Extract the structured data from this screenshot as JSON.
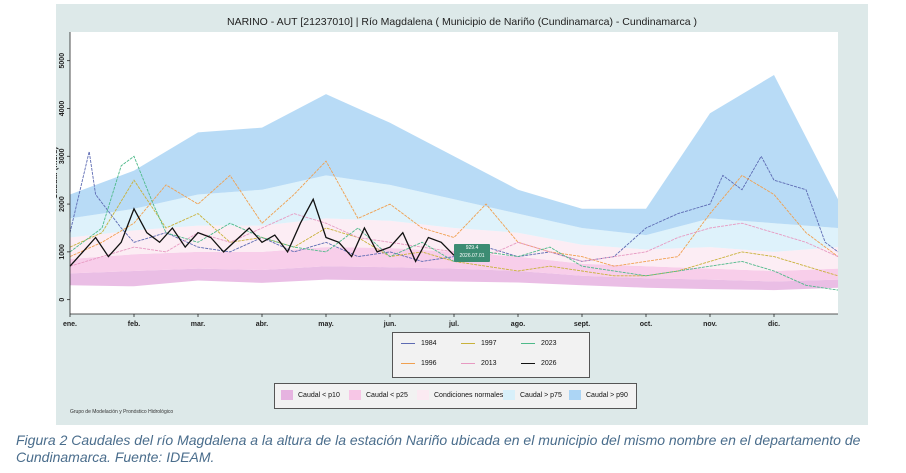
{
  "figure": {
    "caption": "Figura 2 Caudales del río Magdalena a la altura de la estación Nariño ubicada en el municipio del mismo nombre en el departamento de Cundinamarca. Fuente: IDEAM.",
    "credit": "Grupo de Modelación y Pronóstico Hidrológico"
  },
  "chart_data": {
    "type": "line",
    "title": "NARINO - AUT [21237010]  | Río Magdalena ( Municipio de Nariño (Cundinamarca) - Cundinamarca )",
    "xlabel": "",
    "ylabel": "Caudal (m3/s)",
    "categories": [
      "ene.",
      "feb.",
      "mar.",
      "abr.",
      "may.",
      "jun.",
      "jul.",
      "ago.",
      "sept.",
      "oct.",
      "nov.",
      "dic."
    ],
    "yticks": [
      0,
      1000,
      2000,
      3000,
      4000,
      5000
    ],
    "ylim": [
      -300,
      5600
    ],
    "xlim": [
      0,
      12
    ],
    "grid": false,
    "annotation": {
      "value": "929.4",
      "date": "2026.07.01"
    },
    "bands": [
      {
        "name": "Caudal < p10",
        "color": "#e6b3e0",
        "lower": [
          300,
          280,
          400,
          350,
          420,
          400,
          380,
          360,
          300,
          250,
          220,
          200,
          250
        ],
        "upper": [
          550,
          600,
          650,
          620,
          700,
          680,
          650,
          600,
          500,
          450,
          420,
          380,
          420
        ]
      },
      {
        "name": "Caudal < p25",
        "color": "#f7c6e6",
        "lower": [
          550,
          600,
          650,
          620,
          700,
          680,
          650,
          600,
          500,
          450,
          420,
          380,
          420
        ],
        "upper": [
          850,
          950,
          1000,
          1000,
          1100,
          1080,
          1000,
          900,
          750,
          700,
          650,
          600,
          650
        ]
      },
      {
        "name": "Condiciones normales",
        "color": "#fbeaf2",
        "lower": [
          850,
          950,
          1000,
          1000,
          1100,
          1080,
          1000,
          900,
          750,
          700,
          650,
          600,
          650
        ],
        "upper": [
          1300,
          1450,
          1550,
          1550,
          1700,
          1650,
          1500,
          1400,
          1150,
          1050,
          1100,
          1000,
          1100
        ]
      },
      {
        "name": "Caudal > p75",
        "color": "#d8f0fa",
        "lower": [
          1300,
          1450,
          1550,
          1550,
          1700,
          1650,
          1500,
          1400,
          1150,
          1050,
          1100,
          1000,
          1100
        ],
        "upper": [
          1700,
          1900,
          2200,
          2300,
          2600,
          2400,
          2100,
          1800,
          1500,
          1350,
          1700,
          1600,
          1500
        ]
      },
      {
        "name": "Caudal > p90",
        "color": "#acd5f5",
        "lower": [
          1700,
          1900,
          2200,
          2300,
          2600,
          2400,
          2100,
          1800,
          1500,
          1350,
          1700,
          1600,
          1500
        ],
        "upper": [
          2200,
          2700,
          3500,
          3600,
          4300,
          3700,
          3000,
          2300,
          1900,
          1900,
          3900,
          4700,
          2100
        ]
      }
    ],
    "series": [
      {
        "name": "1984",
        "color": "#5d6bb3",
        "x": [
          0,
          0.3,
          0.4,
          0.8,
          1,
          1.5,
          2,
          2.5,
          3,
          3.5,
          4,
          4.5,
          5,
          5.5,
          6,
          6.5,
          7,
          7.5,
          8,
          8.5,
          9,
          9.5,
          10,
          10.2,
          10.5,
          10.8,
          11,
          11.5,
          11.8,
          12
        ],
        "y": [
          1400,
          3100,
          2200,
          1500,
          1200,
          1400,
          1100,
          1000,
          1300,
          1000,
          1200,
          900,
          1000,
          800,
          900,
          1100,
          900,
          1000,
          800,
          900,
          1500,
          1800,
          2000,
          2600,
          2300,
          3000,
          2500,
          2300,
          1200,
          1000
        ]
      },
      {
        "name": "1996",
        "color": "#f0a050",
        "x": [
          0,
          0.5,
          1,
          1.5,
          2,
          2.5,
          3,
          3.5,
          4,
          4.5,
          5,
          5.5,
          6,
          6.5,
          7,
          7.5,
          8,
          8.5,
          9,
          9.5,
          10,
          10.5,
          11,
          11.5,
          12
        ],
        "y": [
          900,
          1200,
          1600,
          2400,
          2000,
          2600,
          1600,
          2200,
          2900,
          1700,
          2000,
          1500,
          1300,
          2000,
          1200,
          1000,
          900,
          700,
          800,
          900,
          1800,
          2600,
          2200,
          1400,
          900
        ]
      },
      {
        "name": "1997",
        "color": "#c9b23b",
        "x": [
          0,
          0.5,
          1,
          1.5,
          2,
          2.5,
          3,
          3.5,
          4,
          4.5,
          5,
          5.5,
          6,
          6.5,
          7,
          7.5,
          8,
          8.5,
          9,
          9.5,
          10,
          10.5,
          11,
          11.5,
          12
        ],
        "y": [
          1100,
          1400,
          2500,
          1500,
          1800,
          1200,
          1300,
          1100,
          1500,
          1300,
          900,
          1000,
          800,
          700,
          600,
          700,
          600,
          500,
          500,
          600,
          800,
          1000,
          900,
          700,
          500
        ]
      },
      {
        "name": "2013",
        "color": "#e79ac2",
        "x": [
          0,
          0.5,
          1,
          1.5,
          2,
          2.5,
          3,
          3.5,
          4,
          4.5,
          5,
          5.5,
          6,
          6.5,
          7,
          7.5,
          8,
          8.5,
          9,
          9.5,
          10,
          10.5,
          11,
          11.5,
          12
        ],
        "y": [
          700,
          900,
          1100,
          1000,
          1400,
          1200,
          1500,
          1800,
          1600,
          1300,
          1200,
          1100,
          1000,
          900,
          1200,
          1000,
          800,
          900,
          1000,
          1300,
          1500,
          1600,
          1400,
          1200,
          900
        ]
      },
      {
        "name": "2023",
        "color": "#4fba8a",
        "x": [
          0,
          0.5,
          0.8,
          1,
          1.3,
          1.5,
          2,
          2.5,
          3,
          3.5,
          4,
          4.5,
          5,
          5.5,
          6,
          6.5,
          7,
          7.5,
          8,
          8.5,
          9,
          9.5,
          10,
          10.5,
          11,
          11.5,
          12
        ],
        "y": [
          1000,
          1500,
          2800,
          3000,
          2000,
          1400,
          1200,
          1600,
          1300,
          1100,
          1000,
          1500,
          900,
          1200,
          800,
          1000,
          900,
          1100,
          700,
          600,
          500,
          600,
          700,
          800,
          600,
          300,
          200
        ]
      },
      {
        "name": "2026",
        "color": "#111111",
        "x": [
          0,
          0.2,
          0.4,
          0.6,
          0.8,
          1.0,
          1.2,
          1.4,
          1.6,
          1.8,
          2.0,
          2.2,
          2.4,
          2.6,
          2.8,
          3.0,
          3.2,
          3.4,
          3.6,
          3.8,
          4.0,
          4.2,
          4.4,
          4.6,
          4.8,
          5.0,
          5.2,
          5.4,
          5.6,
          5.8,
          6.0
        ],
        "y": [
          700,
          1000,
          1300,
          900,
          1200,
          1900,
          1400,
          1200,
          1500,
          1100,
          1400,
          1300,
          1000,
          1250,
          1500,
          1200,
          1350,
          1000,
          1600,
          2100,
          1300,
          1200,
          900,
          1500,
          1000,
          1100,
          1400,
          800,
          1300,
          1200,
          929
        ]
      }
    ]
  }
}
